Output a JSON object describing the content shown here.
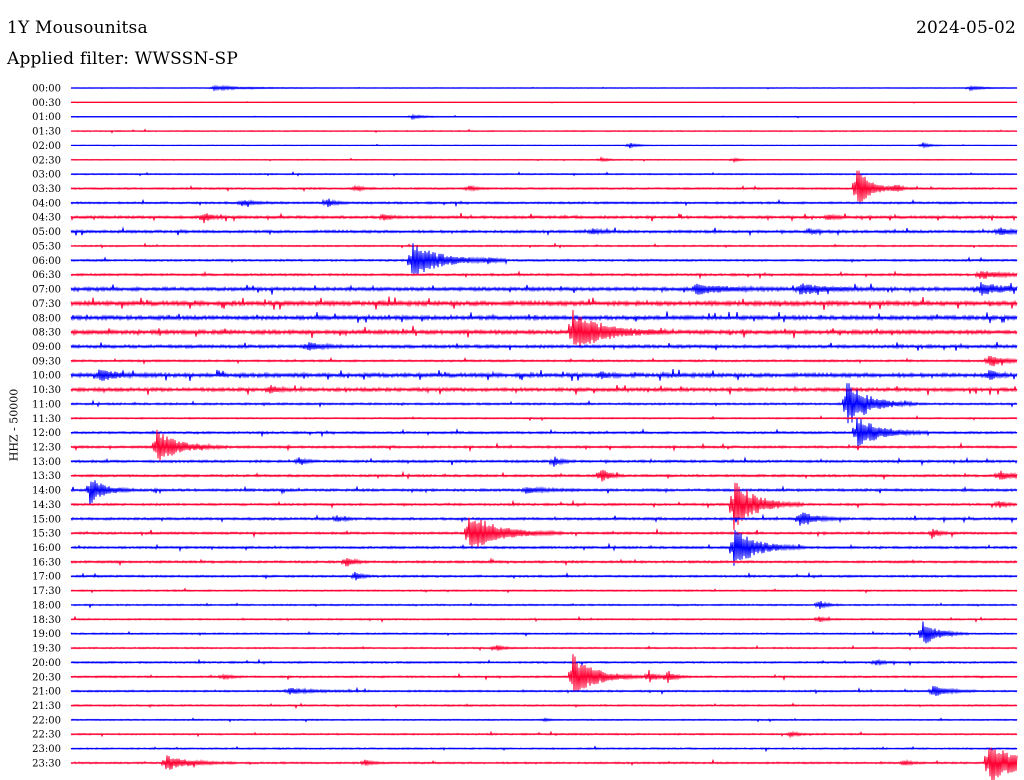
{
  "header": {
    "station": "1Y Mousounitsa",
    "date": "2024-05-02",
    "filter": "Applied filter: WWSSN-SP"
  },
  "axis_label": "HHZ - 50000",
  "colors": {
    "even_row": "#0000ff",
    "odd_row": "#ff0033"
  },
  "chart_data": {
    "type": "line",
    "description_type": "helicorder",
    "y_tick_labels": [
      "00:00",
      "00:30",
      "01:00",
      "01:30",
      "02:00",
      "02:30",
      "03:00",
      "03:30",
      "04:00",
      "04:30",
      "05:00",
      "05:30",
      "06:00",
      "06:30",
      "07:00",
      "07:30",
      "08:00",
      "08:30",
      "09:00",
      "09:30",
      "10:00",
      "10:30",
      "11:00",
      "11:30",
      "12:00",
      "12:30",
      "13:00",
      "13:30",
      "14:00",
      "14:30",
      "15:00",
      "15:30",
      "16:00",
      "16:30",
      "17:00",
      "17:30",
      "18:00",
      "18:30",
      "19:00",
      "19:30",
      "20:00",
      "20:30",
      "21:00",
      "21:30",
      "22:00",
      "22:30",
      "23:00",
      "23:30"
    ],
    "trace_colors": [
      "#0000ff",
      "#ff0033"
    ],
    "row_noise": [
      0.3,
      0.2,
      0.3,
      0.5,
      0.3,
      0.4,
      0.6,
      0.8,
      0.9,
      1.2,
      1.2,
      0.7,
      0.9,
      1.0,
      1.6,
      2.0,
      1.8,
      1.8,
      1.4,
      0.9,
      1.8,
      1.6,
      0.9,
      0.7,
      1.0,
      1.0,
      1.1,
      1.0,
      1.1,
      1.0,
      1.1,
      1.0,
      1.0,
      1.0,
      0.9,
      0.7,
      0.7,
      0.7,
      0.7,
      0.7,
      0.8,
      0.8,
      0.8,
      0.7,
      0.6,
      0.7,
      0.7,
      0.8
    ],
    "events": [
      {
        "row": 0,
        "t": 0.15,
        "amp": 2,
        "dur": 0.05
      },
      {
        "row": 0,
        "t": 0.95,
        "amp": 2,
        "dur": 0.02
      },
      {
        "row": 2,
        "t": 0.36,
        "amp": 2,
        "dur": 0.02
      },
      {
        "row": 4,
        "t": 0.59,
        "amp": 3,
        "dur": 0.01
      },
      {
        "row": 4,
        "t": 0.9,
        "amp": 3,
        "dur": 0.01
      },
      {
        "row": 5,
        "t": 0.56,
        "amp": 2,
        "dur": 0.01
      },
      {
        "row": 5,
        "t": 0.7,
        "amp": 2,
        "dur": 0.01
      },
      {
        "row": 7,
        "t": 0.3,
        "amp": 3,
        "dur": 0.01
      },
      {
        "row": 7,
        "t": 0.42,
        "amp": 3,
        "dur": 0.01
      },
      {
        "row": 7,
        "t": 0.83,
        "amp": 22,
        "dur": 0.02
      },
      {
        "row": 7,
        "t": 0.87,
        "amp": 3,
        "dur": 0.01
      },
      {
        "row": 8,
        "t": 0.18,
        "amp": 3,
        "dur": 0.02
      },
      {
        "row": 8,
        "t": 0.27,
        "amp": 5,
        "dur": 0.01
      },
      {
        "row": 9,
        "t": 0.14,
        "amp": 6,
        "dur": 0.01
      },
      {
        "row": 9,
        "t": 0.33,
        "amp": 3,
        "dur": 0.01
      },
      {
        "row": 9,
        "t": 0.8,
        "amp": 3,
        "dur": 0.01
      },
      {
        "row": 10,
        "t": 0.55,
        "amp": 3,
        "dur": 0.01
      },
      {
        "row": 10,
        "t": 0.78,
        "amp": 3,
        "dur": 0.01
      },
      {
        "row": 10,
        "t": 0.98,
        "amp": 4,
        "dur": 0.02
      },
      {
        "row": 12,
        "t": 0.36,
        "amp": 18,
        "dur": 0.04
      },
      {
        "row": 12,
        "t": 0.44,
        "amp": 3,
        "dur": 0.01
      },
      {
        "row": 13,
        "t": 0.96,
        "amp": 5,
        "dur": 0.03
      },
      {
        "row": 14,
        "t": 0.66,
        "amp": 5,
        "dur": 0.04
      },
      {
        "row": 14,
        "t": 0.77,
        "amp": 5,
        "dur": 0.04
      },
      {
        "row": 14,
        "t": 0.96,
        "amp": 6,
        "dur": 0.04
      },
      {
        "row": 17,
        "t": 0.53,
        "amp": 22,
        "dur": 0.04
      },
      {
        "row": 18,
        "t": 0.25,
        "amp": 4,
        "dur": 0.02
      },
      {
        "row": 19,
        "t": 0.97,
        "amp": 6,
        "dur": 0.02
      },
      {
        "row": 20,
        "t": 0.03,
        "amp": 6,
        "dur": 0.02
      },
      {
        "row": 20,
        "t": 0.56,
        "amp": 4,
        "dur": 0.01
      },
      {
        "row": 20,
        "t": 0.97,
        "amp": 6,
        "dur": 0.01
      },
      {
        "row": 21,
        "t": 0.21,
        "amp": 5,
        "dur": 0.01
      },
      {
        "row": 22,
        "t": 0.82,
        "amp": 25,
        "dur": 0.03
      },
      {
        "row": 24,
        "t": 0.83,
        "amp": 18,
        "dur": 0.03
      },
      {
        "row": 25,
        "t": 0.09,
        "amp": 18,
        "dur": 0.03
      },
      {
        "row": 26,
        "t": 0.24,
        "amp": 4,
        "dur": 0.01
      },
      {
        "row": 26,
        "t": 0.51,
        "amp": 5,
        "dur": 0.01
      },
      {
        "row": 27,
        "t": 0.56,
        "amp": 9,
        "dur": 0.01
      },
      {
        "row": 27,
        "t": 0.98,
        "amp": 5,
        "dur": 0.02
      },
      {
        "row": 28,
        "t": 0.02,
        "amp": 14,
        "dur": 0.02
      },
      {
        "row": 28,
        "t": 0.48,
        "amp": 3,
        "dur": 0.03
      },
      {
        "row": 29,
        "t": 0.7,
        "amp": 28,
        "dur": 0.03
      },
      {
        "row": 29,
        "t": 0.98,
        "amp": 4,
        "dur": 0.01
      },
      {
        "row": 30,
        "t": 0.77,
        "amp": 9,
        "dur": 0.02
      },
      {
        "row": 30,
        "t": 0.28,
        "amp": 3,
        "dur": 0.01
      },
      {
        "row": 31,
        "t": 0.42,
        "amp": 22,
        "dur": 0.04
      },
      {
        "row": 31,
        "t": 0.91,
        "amp": 5,
        "dur": 0.01
      },
      {
        "row": 32,
        "t": 0.7,
        "amp": 22,
        "dur": 0.03
      },
      {
        "row": 33,
        "t": 0.29,
        "amp": 6,
        "dur": 0.01
      },
      {
        "row": 34,
        "t": 0.3,
        "amp": 4,
        "dur": 0.01
      },
      {
        "row": 36,
        "t": 0.79,
        "amp": 5,
        "dur": 0.01
      },
      {
        "row": 37,
        "t": 0.79,
        "amp": 3,
        "dur": 0.01
      },
      {
        "row": 38,
        "t": 0.9,
        "amp": 14,
        "dur": 0.02
      },
      {
        "row": 39,
        "t": 0.45,
        "amp": 3,
        "dur": 0.01
      },
      {
        "row": 40,
        "t": 0.85,
        "amp": 3,
        "dur": 0.01
      },
      {
        "row": 41,
        "t": 0.53,
        "amp": 24,
        "dur": 0.03
      },
      {
        "row": 41,
        "t": 0.61,
        "amp": 7,
        "dur": 0.01
      },
      {
        "row": 41,
        "t": 0.63,
        "amp": 7,
        "dur": 0.01
      },
      {
        "row": 41,
        "t": 0.16,
        "amp": 3,
        "dur": 0.01
      },
      {
        "row": 42,
        "t": 0.23,
        "amp": 3,
        "dur": 0.03
      },
      {
        "row": 42,
        "t": 0.91,
        "amp": 6,
        "dur": 0.02
      },
      {
        "row": 44,
        "t": 0.5,
        "amp": 1,
        "dur": 0.01
      },
      {
        "row": 45,
        "t": 0.76,
        "amp": 3,
        "dur": 0.01
      },
      {
        "row": 47,
        "t": 0.1,
        "amp": 8,
        "dur": 0.03
      },
      {
        "row": 47,
        "t": 0.31,
        "amp": 3,
        "dur": 0.01
      },
      {
        "row": 47,
        "t": 0.88,
        "amp": 3,
        "dur": 0.01
      },
      {
        "row": 47,
        "t": 0.97,
        "amp": 22,
        "dur": 0.04
      }
    ]
  }
}
